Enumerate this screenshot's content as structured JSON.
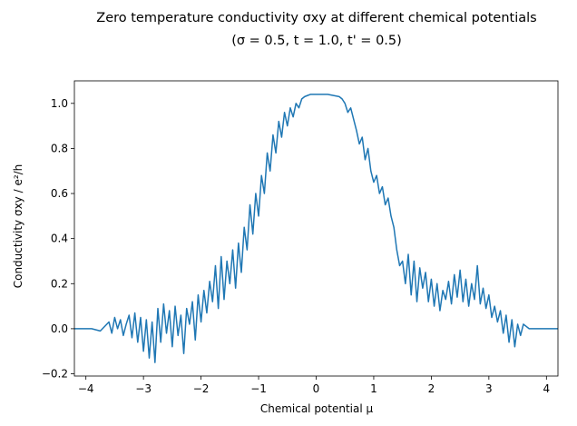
{
  "chart_data": {
    "type": "line",
    "title": "Zero temperature conductivity σxy at different chemical potentials",
    "subtitle": "(σ = 0.5, t = 1.0, t' = 0.5)",
    "xlabel": "Chemical potential μ",
    "ylabel": "Conductivity σxy / e²/h",
    "xlim": [
      -4.2,
      4.2
    ],
    "ylim": [
      -0.21,
      1.1
    ],
    "xticks": [
      -4,
      -3,
      -2,
      -1,
      0,
      1,
      2,
      3,
      4
    ],
    "xtick_labels": [
      "−4",
      "−3",
      "−2",
      "−1",
      "0",
      "1",
      "2",
      "3",
      "4"
    ],
    "yticks": [
      -0.2,
      0.0,
      0.2,
      0.4,
      0.6,
      0.8,
      1.0
    ],
    "ytick_labels": [
      "−0.2",
      "0.0",
      "0.2",
      "0.4",
      "0.6",
      "0.8",
      "1.0"
    ],
    "grid": false,
    "legend": "none",
    "series_color": "#1f77b4",
    "series": [
      {
        "x": [
          -4.2,
          -3.9,
          -3.75,
          -3.6,
          -3.55,
          -3.5,
          -3.45,
          -3.4,
          -3.35,
          -3.3,
          -3.25,
          -3.2,
          -3.15,
          -3.1,
          -3.05,
          -3.0,
          -2.95,
          -2.9,
          -2.85,
          -2.8,
          -2.75,
          -2.7,
          -2.65,
          -2.6,
          -2.55,
          -2.5,
          -2.45,
          -2.4,
          -2.35,
          -2.3,
          -2.25,
          -2.2,
          -2.15,
          -2.1,
          -2.05,
          -2.0,
          -1.95,
          -1.9,
          -1.85,
          -1.8,
          -1.75,
          -1.7,
          -1.65,
          -1.6,
          -1.55,
          -1.5,
          -1.45,
          -1.4,
          -1.35,
          -1.3,
          -1.25,
          -1.2,
          -1.15,
          -1.1,
          -1.05,
          -1.0,
          -0.95,
          -0.9,
          -0.85,
          -0.8,
          -0.75,
          -0.7,
          -0.65,
          -0.6,
          -0.55,
          -0.5,
          -0.45,
          -0.4,
          -0.35,
          -0.3,
          -0.25,
          -0.2,
          -0.15,
          -0.1,
          0.0,
          0.1,
          0.2,
          0.3,
          0.4,
          0.45,
          0.5,
          0.55,
          0.6,
          0.65,
          0.7,
          0.75,
          0.8,
          0.85,
          0.9,
          0.95,
          1.0,
          1.05,
          1.1,
          1.15,
          1.2,
          1.25,
          1.3,
          1.35,
          1.4,
          1.45,
          1.5,
          1.55,
          1.6,
          1.65,
          1.7,
          1.75,
          1.8,
          1.85,
          1.9,
          1.95,
          2.0,
          2.05,
          2.1,
          2.15,
          2.2,
          2.25,
          2.3,
          2.35,
          2.4,
          2.45,
          2.5,
          2.55,
          2.6,
          2.65,
          2.7,
          2.75,
          2.8,
          2.85,
          2.9,
          2.95,
          3.0,
          3.05,
          3.1,
          3.15,
          3.2,
          3.25,
          3.3,
          3.35,
          3.4,
          3.45,
          3.5,
          3.55,
          3.6,
          3.7,
          3.9,
          4.2
        ],
        "y": [
          0.0,
          0.0,
          -0.01,
          0.03,
          -0.02,
          0.05,
          0.0,
          0.04,
          -0.03,
          0.02,
          0.06,
          -0.04,
          0.07,
          -0.06,
          0.05,
          -0.1,
          0.04,
          -0.13,
          0.03,
          -0.15,
          0.09,
          -0.06,
          0.11,
          -0.02,
          0.08,
          -0.08,
          0.1,
          -0.03,
          0.06,
          -0.11,
          0.09,
          0.02,
          0.12,
          -0.05,
          0.15,
          0.03,
          0.17,
          0.07,
          0.21,
          0.12,
          0.28,
          0.09,
          0.32,
          0.13,
          0.3,
          0.2,
          0.35,
          0.18,
          0.38,
          0.25,
          0.45,
          0.35,
          0.55,
          0.42,
          0.6,
          0.5,
          0.68,
          0.6,
          0.78,
          0.7,
          0.86,
          0.78,
          0.92,
          0.85,
          0.96,
          0.9,
          0.98,
          0.94,
          1.0,
          0.98,
          1.02,
          1.03,
          1.035,
          1.04,
          1.04,
          1.04,
          1.04,
          1.035,
          1.03,
          1.02,
          1.0,
          0.96,
          0.98,
          0.93,
          0.88,
          0.82,
          0.85,
          0.75,
          0.8,
          0.7,
          0.65,
          0.68,
          0.6,
          0.63,
          0.55,
          0.58,
          0.5,
          0.45,
          0.35,
          0.28,
          0.3,
          0.2,
          0.33,
          0.15,
          0.3,
          0.12,
          0.27,
          0.18,
          0.25,
          0.12,
          0.22,
          0.1,
          0.2,
          0.08,
          0.17,
          0.13,
          0.21,
          0.11,
          0.24,
          0.14,
          0.26,
          0.12,
          0.22,
          0.1,
          0.2,
          0.13,
          0.28,
          0.11,
          0.18,
          0.09,
          0.15,
          0.05,
          0.1,
          0.03,
          0.08,
          -0.02,
          0.06,
          -0.06,
          0.04,
          -0.08,
          0.02,
          -0.03,
          0.02,
          0.0,
          0.0,
          0.0
        ]
      }
    ]
  }
}
